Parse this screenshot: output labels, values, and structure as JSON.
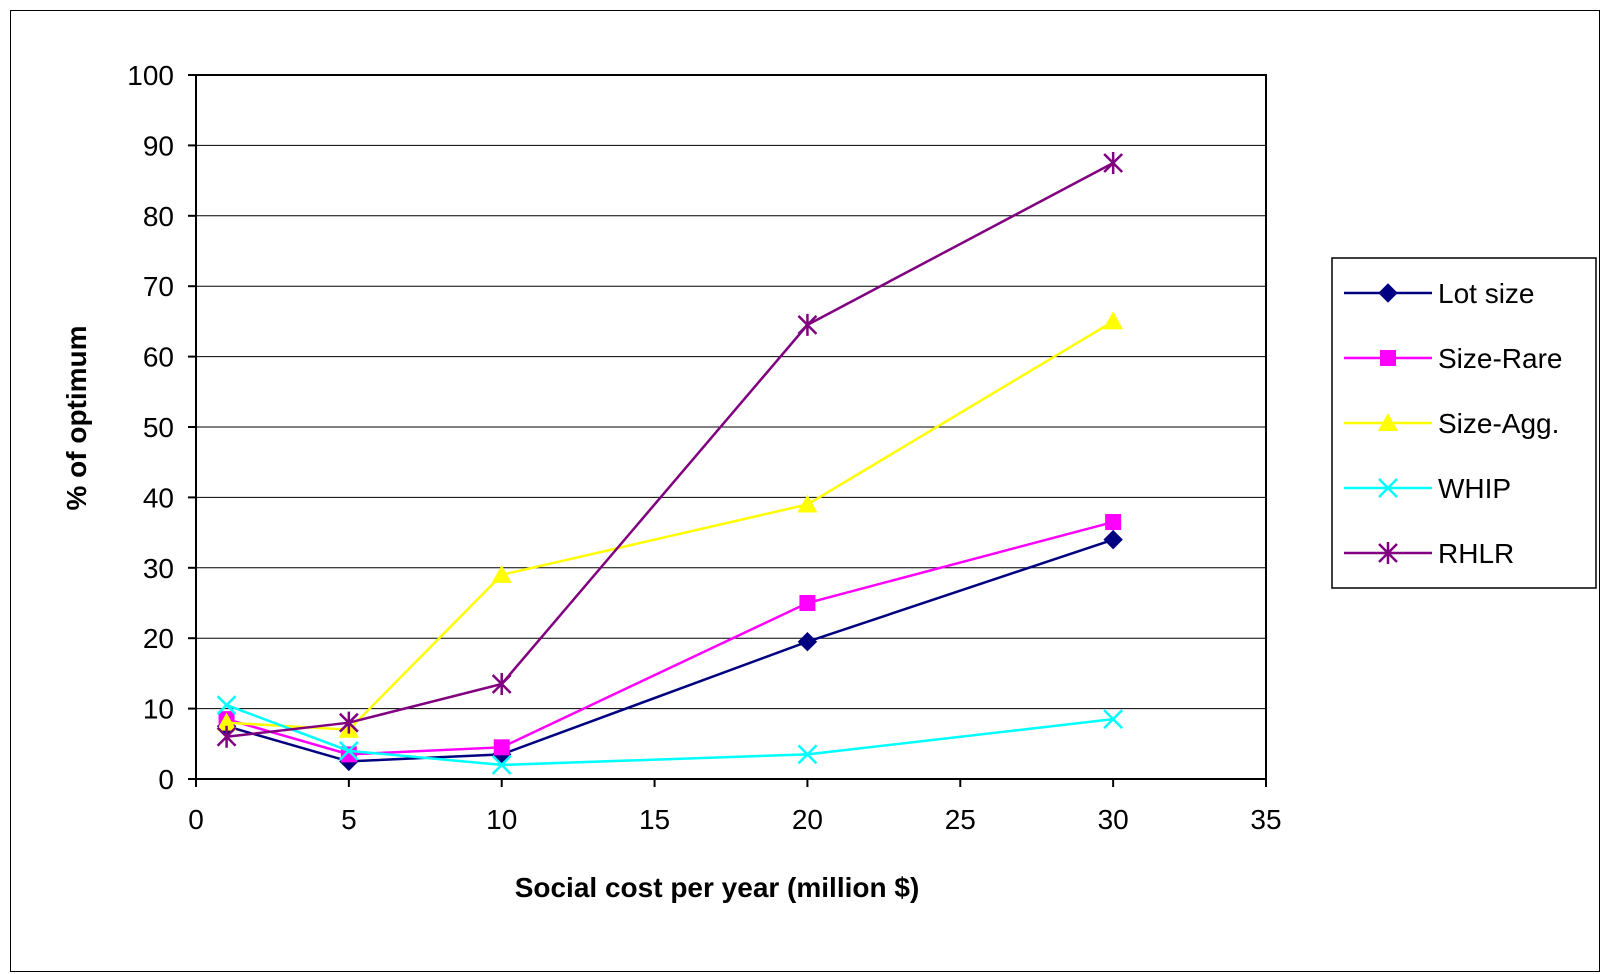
{
  "chart_data": {
    "type": "line",
    "title": "",
    "xlabel": "Social cost per year (million $)",
    "ylabel": "% of optimum",
    "xlim": [
      0,
      35
    ],
    "ylim": [
      0,
      100
    ],
    "x_ticks": [
      0,
      5,
      10,
      15,
      20,
      25,
      30,
      35
    ],
    "y_ticks": [
      0,
      10,
      20,
      30,
      40,
      50,
      60,
      70,
      80,
      90,
      100
    ],
    "grid": "horizontal",
    "legend_position": "right",
    "x": [
      1,
      5,
      10,
      20,
      30
    ],
    "series": [
      {
        "name": "Lot size",
        "values": [
          7.5,
          2.5,
          3.5,
          19.5,
          34
        ],
        "color": "#000080",
        "marker": "diamond"
      },
      {
        "name": "Size-Rare",
        "values": [
          8.5,
          3.5,
          4.5,
          25,
          36.5
        ],
        "color": "#FF00FF",
        "marker": "square"
      },
      {
        "name": "Size-Agg.",
        "values": [
          8,
          7,
          29,
          39,
          65
        ],
        "color": "#FFFF00",
        "marker": "triangle"
      },
      {
        "name": "WHIP",
        "values": [
          10.5,
          4,
          2,
          3.5,
          8.5
        ],
        "color": "#00FFFF",
        "marker": "x"
      },
      {
        "name": "RHLR",
        "values": [
          6,
          8,
          13.5,
          64.5,
          87.5
        ],
        "color": "#800080",
        "marker": "star"
      }
    ]
  }
}
